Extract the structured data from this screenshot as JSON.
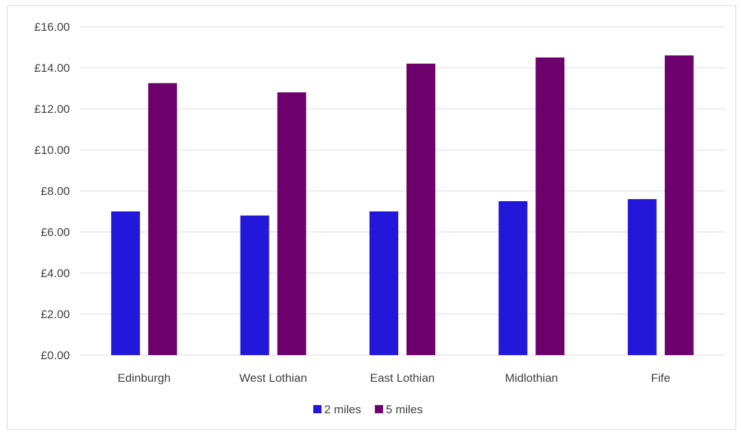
{
  "chart_data": {
    "type": "bar",
    "title": "",
    "xlabel": "",
    "ylabel": "",
    "categories": [
      "Edinburgh",
      "West Lothian",
      "East Lothian",
      "Midlothian",
      "Fife"
    ],
    "series": [
      {
        "name": "2 miles",
        "color": "#2318da",
        "values": [
          7.0,
          6.8,
          7.0,
          7.5,
          7.6
        ]
      },
      {
        "name": "5 miles",
        "color": "#6e006e",
        "values": [
          13.25,
          12.8,
          14.2,
          14.5,
          14.6
        ]
      }
    ],
    "ylim": [
      0,
      16
    ],
    "yticks": [
      0,
      2,
      4,
      6,
      8,
      10,
      12,
      14,
      16
    ],
    "ytick_labels": [
      "£0.00",
      "£2.00",
      "£4.00",
      "£6.00",
      "£8.00",
      "£10.00",
      "£12.00",
      "£14.00",
      "£16.00"
    ],
    "grid": true,
    "legend_position": "bottom"
  }
}
